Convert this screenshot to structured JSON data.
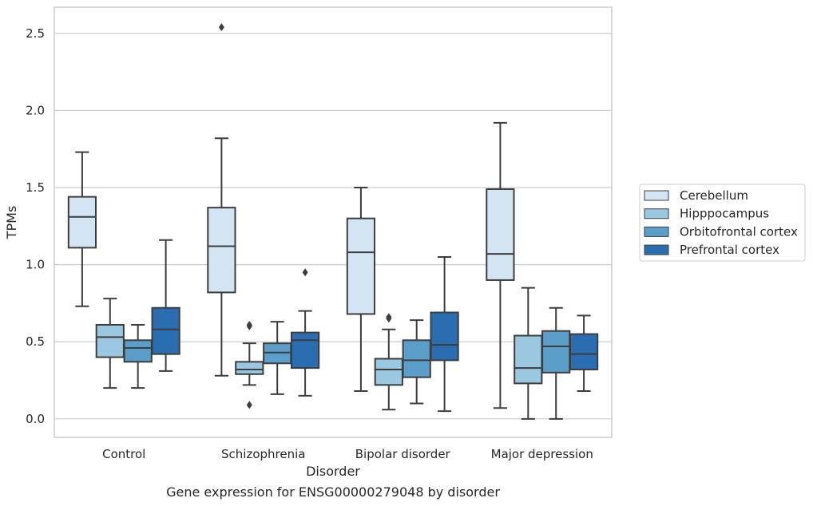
{
  "chart_data": {
    "type": "boxplot",
    "title": "",
    "xlabel": "Disorder",
    "ylabel": "TPMs",
    "caption": "Gene expression for ENSG00000279048 by disorder",
    "ylim": [
      -0.12,
      2.67
    ],
    "yticks": [
      0.0,
      0.5,
      1.0,
      1.5,
      2.0,
      2.5
    ],
    "ytick_labels": [
      "0.0",
      "0.5",
      "1.0",
      "1.5",
      "2.0",
      "2.5"
    ],
    "categories": [
      "Control",
      "Schizophrenia",
      "Bipolar disorder",
      "Major depression"
    ],
    "grid": true,
    "legend_position": "right",
    "series": [
      {
        "name": "Cerebellum",
        "color": "#d3e4f3",
        "boxes": [
          {
            "whislo": 0.73,
            "q1": 1.11,
            "med": 1.31,
            "q3": 1.44,
            "whishi": 1.73,
            "fliers": []
          },
          {
            "whislo": 0.28,
            "q1": 0.82,
            "med": 1.12,
            "q3": 1.37,
            "whishi": 1.82,
            "fliers": [
              2.54
            ]
          },
          {
            "whislo": 0.18,
            "q1": 0.68,
            "med": 1.08,
            "q3": 1.3,
            "whishi": 1.5,
            "fliers": []
          },
          {
            "whislo": 0.07,
            "q1": 0.9,
            "med": 1.07,
            "q3": 1.49,
            "whishi": 1.92,
            "fliers": []
          }
        ]
      },
      {
        "name": "Hipppocampus",
        "color": "#9ac8e0",
        "boxes": [
          {
            "whislo": 0.2,
            "q1": 0.4,
            "med": 0.53,
            "q3": 0.61,
            "whishi": 0.78,
            "fliers": []
          },
          {
            "whislo": 0.22,
            "q1": 0.29,
            "med": 0.32,
            "q3": 0.37,
            "whishi": 0.49,
            "fliers": [
              0.6,
              0.61,
              0.09
            ]
          },
          {
            "whislo": 0.06,
            "q1": 0.22,
            "med": 0.32,
            "q3": 0.39,
            "whishi": 0.58,
            "fliers": [
              0.65,
              0.66
            ]
          },
          {
            "whislo": 0.0,
            "q1": 0.23,
            "med": 0.33,
            "q3": 0.54,
            "whishi": 0.85,
            "fliers": []
          }
        ]
      },
      {
        "name": "Orbitofrontal cortex",
        "color": "#5a9ec9",
        "boxes": [
          {
            "whislo": 0.2,
            "q1": 0.37,
            "med": 0.46,
            "q3": 0.51,
            "whishi": 0.61,
            "fliers": []
          },
          {
            "whislo": 0.16,
            "q1": 0.36,
            "med": 0.43,
            "q3": 0.49,
            "whishi": 0.63,
            "fliers": []
          },
          {
            "whislo": 0.1,
            "q1": 0.27,
            "med": 0.38,
            "q3": 0.51,
            "whishi": 0.64,
            "fliers": []
          },
          {
            "whislo": 0.0,
            "q1": 0.3,
            "med": 0.47,
            "q3": 0.57,
            "whishi": 0.72,
            "fliers": []
          }
        ]
      },
      {
        "name": "Prefrontal cortex",
        "color": "#2a6db0",
        "boxes": [
          {
            "whislo": 0.31,
            "q1": 0.42,
            "med": 0.58,
            "q3": 0.72,
            "whishi": 1.16,
            "fliers": []
          },
          {
            "whislo": 0.15,
            "q1": 0.33,
            "med": 0.51,
            "q3": 0.56,
            "whishi": 0.7,
            "fliers": [
              0.95
            ]
          },
          {
            "whislo": 0.05,
            "q1": 0.38,
            "med": 0.48,
            "q3": 0.69,
            "whishi": 1.05,
            "fliers": []
          },
          {
            "whislo": 0.18,
            "q1": 0.32,
            "med": 0.42,
            "q3": 0.55,
            "whishi": 0.67,
            "fliers": []
          }
        ]
      }
    ]
  }
}
